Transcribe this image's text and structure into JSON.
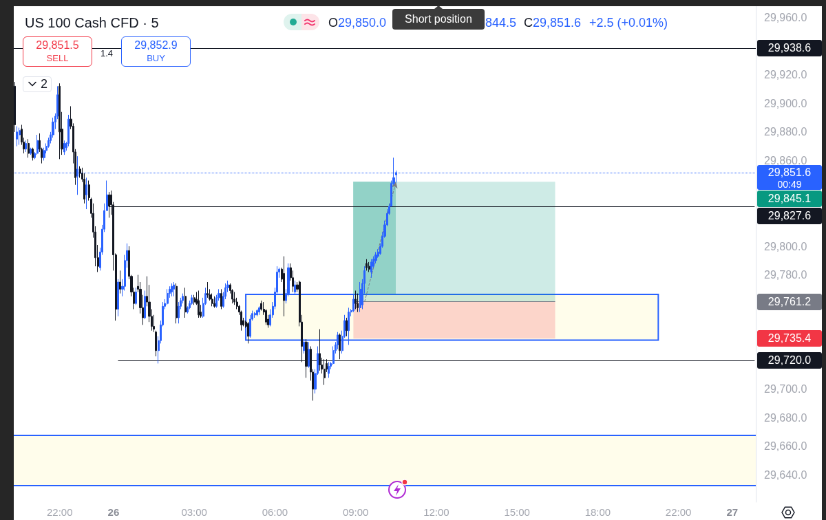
{
  "chart_data": {
    "type": "candlestick",
    "title": "US 100 Cash CFD · 5",
    "categories": [
      null,
      null,
      null,
      null,
      null,
      null,
      null,
      null,
      null,
      null,
      null,
      null,
      null,
      null,
      null,
      null,
      null,
      null,
      null,
      null,
      "22:00",
      null,
      null,
      null,
      null,
      null,
      null,
      null,
      null,
      null,
      null,
      null,
      null,
      null,
      null,
      null,
      null,
      null,
      null,
      null,
      null,
      null,
      null,
      null,
      "26",
      null,
      null,
      null,
      null,
      null,
      null,
      null,
      null,
      null,
      null,
      null,
      null,
      null,
      null,
      null,
      null,
      null,
      null,
      null,
      null,
      null,
      null,
      null,
      null,
      null,
      null,
      null,
      null,
      null,
      null,
      null,
      null,
      null,
      null,
      null,
      "03:00",
      null,
      null,
      null,
      null,
      null,
      null,
      null,
      null,
      null,
      null,
      null,
      null,
      null,
      null,
      null,
      null,
      null,
      null,
      null,
      null,
      null,
      null,
      null,
      null,
      null,
      null,
      null,
      null,
      null,
      null,
      null,
      null,
      null,
      null,
      null,
      "06:00",
      null,
      null,
      null,
      null,
      null,
      null,
      null,
      null,
      null,
      null,
      null,
      null,
      null,
      null,
      null,
      null,
      null,
      null,
      null,
      null,
      null,
      null,
      null,
      null,
      null,
      null,
      null,
      null,
      null,
      null,
      null,
      null,
      null,
      null,
      null,
      "09:00",
      null,
      null,
      null,
      null,
      null,
      null,
      null,
      null,
      null,
      null,
      null,
      null,
      null,
      null,
      null,
      null,
      null,
      null,
      null,
      null,
      null,
      null,
      null,
      null,
      null,
      null,
      null,
      null,
      null,
      null,
      null,
      null,
      null,
      null,
      null,
      "12:00",
      null,
      null,
      null,
      null,
      null,
      null,
      null,
      null,
      null,
      null,
      null,
      null,
      null,
      null,
      null,
      null,
      null,
      null,
      null,
      null,
      null,
      null,
      null,
      null,
      null,
      null,
      null,
      null,
      null,
      null,
      null,
      null,
      null,
      null,
      null,
      "15:00",
      null,
      null,
      null,
      null,
      null,
      null,
      null,
      null,
      null,
      null,
      null,
      null,
      null,
      null,
      null,
      null,
      null,
      null,
      null,
      null,
      null,
      null,
      null,
      null,
      null,
      null,
      null,
      null,
      null,
      null,
      null,
      null,
      null,
      null,
      null,
      "18:00",
      null,
      null,
      null,
      null,
      null,
      null,
      null,
      null,
      null,
      null,
      null,
      null,
      null,
      null,
      null,
      null,
      null,
      null,
      null,
      null,
      null,
      null,
      null,
      null,
      null,
      null,
      null,
      null,
      null,
      null,
      null,
      null,
      null,
      null,
      null,
      "22:00",
      null,
      null,
      null,
      null,
      null,
      null,
      null,
      null,
      null,
      null,
      null,
      null,
      null,
      null,
      null,
      null,
      null,
      null,
      null,
      null,
      null,
      null,
      null,
      "27",
      null,
      null,
      null,
      null,
      null,
      null,
      null,
      null,
      null,
      null
    ],
    "ohlc": [
      [
        29912,
        29915,
        29880,
        29885
      ],
      [
        29875,
        29884,
        29870,
        29880
      ],
      [
        29878,
        29883,
        29871,
        29881
      ],
      [
        29882,
        29885,
        29871,
        29873
      ],
      [
        29873,
        29876,
        29865,
        29868
      ],
      [
        29868,
        29874,
        29866,
        29872
      ],
      [
        29872,
        29875,
        29862,
        29865
      ],
      [
        29865,
        29869,
        29864,
        29868
      ],
      [
        29868,
        29869,
        29860,
        29862
      ],
      [
        29862,
        29866,
        29861,
        29865
      ],
      [
        29865,
        29878,
        29864,
        29874
      ],
      [
        29874,
        29879,
        29866,
        29868
      ],
      [
        29868,
        29869,
        29858,
        29862
      ],
      [
        29862,
        29869,
        29860,
        29867
      ],
      [
        29867,
        29872,
        29865,
        29870
      ],
      [
        29870,
        29876,
        29869,
        29874
      ],
      [
        29874,
        29880,
        29872,
        29878
      ],
      [
        29878,
        29890,
        29876,
        29887
      ],
      [
        29887,
        29893,
        29882,
        29891
      ],
      [
        29891,
        29912,
        29889,
        29906
      ],
      [
        29912,
        29914,
        29861,
        29880
      ],
      [
        29882,
        29894,
        29864,
        29868
      ],
      [
        29866,
        29874,
        29864,
        29872
      ],
      [
        29869,
        29873,
        29867,
        29872
      ],
      [
        29872,
        29892,
        29870,
        29889
      ],
      [
        29889,
        29898,
        29882,
        29884
      ],
      [
        29884,
        29886,
        29858,
        29866
      ],
      [
        29866,
        29868,
        29843,
        29848
      ],
      [
        29849,
        29863,
        29836,
        29854
      ],
      [
        29854,
        29856,
        29848,
        29851
      ],
      [
        29851,
        29855,
        29845,
        29847
      ],
      [
        29847,
        29851,
        29830,
        29833
      ],
      [
        29836,
        29848,
        29826,
        29843
      ],
      [
        29843,
        29846,
        29832,
        29834
      ],
      [
        29833,
        29834,
        29820,
        29823
      ],
      [
        29823,
        29830,
        29806,
        29810
      ],
      [
        29810,
        29814,
        29786,
        29792
      ],
      [
        29792,
        29801,
        29782,
        29786
      ],
      [
        29785,
        29799,
        29783,
        29796
      ],
      [
        29796,
        29815,
        29794,
        29812
      ],
      [
        29812,
        29830,
        29810,
        29825
      ],
      [
        29825,
        29846,
        29825,
        29836
      ],
      [
        29836,
        29838,
        29820,
        29828
      ],
      [
        29836,
        29839,
        29822,
        29829
      ],
      [
        29829,
        29831,
        29783,
        29794
      ],
      [
        29794,
        29795,
        29748,
        29756
      ],
      [
        29756,
        29777,
        29751,
        29775
      ],
      [
        29775,
        29783,
        29767,
        29770
      ],
      [
        29770,
        29777,
        29765,
        29772
      ],
      [
        29772,
        29794,
        29769,
        29790
      ],
      [
        29790,
        29802,
        29785,
        29797
      ],
      [
        29797,
        29800,
        29777,
        29779
      ],
      [
        29779,
        29780,
        29765,
        29768
      ],
      [
        29768,
        29771,
        29756,
        29760
      ],
      [
        29760,
        29771,
        29759,
        29768
      ],
      [
        29772,
        29780,
        29768,
        29770
      ],
      [
        29770,
        29775,
        29753,
        29757
      ],
      [
        29757,
        29766,
        29745,
        29750
      ],
      [
        29750,
        29769,
        29749,
        29765
      ],
      [
        29765,
        29779,
        29758,
        29761
      ],
      [
        29761,
        29773,
        29747,
        29751
      ],
      [
        29751,
        29756,
        29741,
        29744
      ],
      [
        29744,
        29752,
        29740,
        29742
      ],
      [
        29740,
        29741,
        29723,
        29727
      ],
      [
        29727,
        29737,
        29718,
        29734
      ],
      [
        29734,
        29748,
        29732,
        29745
      ],
      [
        29745,
        29761,
        29744,
        29758
      ],
      [
        29758,
        29763,
        29756,
        29760
      ],
      [
        29760,
        29770,
        29759,
        29767
      ],
      [
        29767,
        29772,
        29764,
        29770
      ],
      [
        29768,
        29774,
        29765,
        29772
      ],
      [
        29770,
        29775,
        29765,
        29773
      ],
      [
        29772,
        29774,
        29746,
        29750
      ],
      [
        29750,
        29761,
        29746,
        29758
      ],
      [
        29758,
        29764,
        29756,
        29762
      ],
      [
        29762,
        29767,
        29760,
        29765
      ],
      [
        29765,
        29771,
        29750,
        29754
      ],
      [
        29754,
        29758,
        29753,
        29757
      ],
      [
        29757,
        29762,
        29756,
        29760
      ],
      [
        29760,
        29766,
        29759,
        29764
      ],
      [
        29764,
        29766,
        29759,
        29761
      ],
      [
        29763,
        29768,
        29759,
        29760
      ],
      [
        29762,
        29769,
        29750,
        29752
      ],
      [
        29754,
        29759,
        29750,
        29751
      ],
      [
        29751,
        29764,
        29750,
        29760
      ],
      [
        29760,
        29771,
        29759,
        29767
      ],
      [
        29767,
        29775,
        29764,
        29766
      ],
      [
        29766,
        29770,
        29762,
        29763
      ],
      [
        29763,
        29767,
        29758,
        29760
      ],
      [
        29760,
        29765,
        29757,
        29758
      ],
      [
        29758,
        29766,
        29757,
        29764
      ],
      [
        29764,
        29770,
        29762,
        29767
      ],
      [
        29767,
        29770,
        29756,
        29758
      ],
      [
        29758,
        29768,
        29757,
        29765
      ],
      [
        29765,
        29774,
        29763,
        29771
      ],
      [
        29771,
        29776,
        29768,
        29773
      ],
      [
        29773,
        29774,
        29767,
        29769
      ],
      [
        29769,
        29770,
        29760,
        29763
      ],
      [
        29763,
        29768,
        29759,
        29761
      ],
      [
        29761,
        29764,
        29756,
        29758
      ],
      [
        29758,
        29759,
        29752,
        29754
      ],
      [
        29754,
        29755,
        29741,
        29745
      ],
      [
        29748,
        29750,
        29744,
        29745
      ],
      [
        29747,
        29748,
        29743,
        29744
      ],
      [
        29746,
        29747,
        29732,
        29737
      ],
      [
        29737,
        29752,
        29736,
        29749
      ],
      [
        29749,
        29755,
        29748,
        29753
      ],
      [
        29752,
        29754,
        29750,
        29753
      ],
      [
        29752,
        29756,
        29751,
        29755
      ],
      [
        29754,
        29758,
        29752,
        29757
      ],
      [
        29760,
        29762,
        29755,
        29756
      ],
      [
        29756,
        29761,
        29752,
        29754
      ],
      [
        29755,
        29756,
        29745,
        29747
      ],
      [
        29749,
        29752,
        29743,
        29745
      ],
      [
        29745,
        29756,
        29744,
        29752
      ],
      [
        29752,
        29761,
        29750,
        29758
      ],
      [
        29758,
        29771,
        29756,
        29768
      ],
      [
        29768,
        29786,
        29767,
        29782
      ],
      [
        29782,
        29785,
        29778,
        29784
      ],
      [
        29784,
        29785,
        29775,
        29777
      ],
      [
        29781,
        29793,
        29751,
        29762
      ],
      [
        29762,
        29770,
        29760,
        29767
      ],
      [
        29767,
        29788,
        29765,
        29785
      ],
      [
        29785,
        29788,
        29776,
        29778
      ],
      [
        29778,
        29783,
        29768,
        29772
      ],
      [
        29768,
        29776,
        29766,
        29773
      ],
      [
        29773,
        29775,
        29768,
        29770
      ],
      [
        29775,
        29776,
        29744,
        29747
      ],
      [
        29747,
        29752,
        29719,
        29730
      ],
      [
        29727,
        29735,
        29725,
        29733
      ],
      [
        29733,
        29735,
        29708,
        29716
      ],
      [
        29716,
        29733,
        29715,
        29728
      ],
      [
        29728,
        29730,
        29706,
        29712
      ],
      [
        29712,
        29714,
        29692,
        29700
      ],
      [
        29700,
        29714,
        29697,
        29711
      ],
      [
        29711,
        29730,
        29710,
        29725
      ],
      [
        29725,
        29742,
        29713,
        29717
      ],
      [
        29717,
        29722,
        29711,
        29714
      ],
      [
        29714,
        29721,
        29703,
        29708
      ],
      [
        29718,
        29721,
        29712,
        29714
      ],
      [
        29711,
        29719,
        29708,
        29716
      ],
      [
        29716,
        29719,
        29714,
        29718
      ],
      [
        29718,
        29730,
        29717,
        29727
      ],
      [
        29727,
        29733,
        29725,
        29731
      ],
      [
        29731,
        29740,
        29728,
        29738
      ],
      [
        29738,
        29739,
        29721,
        29727
      ],
      [
        29727,
        29741,
        29725,
        29737
      ],
      [
        29737,
        29752,
        29736,
        29748
      ],
      [
        29748,
        29750,
        29737,
        29741
      ],
      [
        29741,
        29757,
        29731,
        29754
      ],
      [
        29754,
        29756,
        29751,
        29755
      ],
      [
        29755,
        29766,
        29754,
        29763
      ],
      [
        29763,
        29769,
        29756,
        29760
      ],
      [
        29760,
        29767,
        29754,
        29757
      ],
      [
        29757,
        29775,
        29754,
        29770
      ],
      [
        29759,
        29777,
        29756,
        29774
      ],
      [
        29774,
        29786,
        29767,
        29783
      ],
      [
        29788,
        29791,
        29783,
        29785
      ],
      [
        29786,
        29789,
        29782,
        29784
      ],
      [
        29782,
        29791,
        29778,
        29789
      ],
      [
        29786,
        29793,
        29785,
        29791
      ],
      [
        29790,
        29796,
        29788,
        29794
      ],
      [
        29793,
        29798,
        29792,
        29796
      ],
      [
        29795,
        29802,
        29794,
        29800
      ],
      [
        29800,
        29810,
        29799,
        29807
      ],
      [
        29807,
        29818,
        29806,
        29815
      ],
      [
        29815,
        29826,
        29814,
        29823
      ],
      [
        29823,
        29830,
        29822,
        29828
      ],
      [
        29828,
        29846,
        29828,
        29844
      ],
      [
        29844,
        29862,
        29843,
        29848
      ],
      [
        29850.0,
        29853,
        29844.5,
        29851.6
      ],
      null,
      null,
      null,
      null,
      null,
      null,
      null,
      null,
      null,
      null,
      null,
      null,
      null,
      null,
      null,
      null,
      null,
      null,
      null,
      null,
      null,
      null,
      null,
      null,
      null,
      null,
      null,
      null,
      null,
      null,
      null,
      null,
      null,
      null,
      null,
      null,
      null,
      null,
      null,
      null,
      null,
      null,
      null,
      null,
      null,
      null,
      null,
      null,
      null,
      null,
      null,
      null,
      null,
      null,
      null,
      null,
      null,
      null,
      null,
      null,
      null,
      null,
      null,
      null,
      null,
      null,
      null,
      null,
      null,
      null,
      null,
      null,
      null,
      null,
      null,
      null,
      null,
      null,
      null,
      null,
      null,
      null,
      null,
      null,
      null,
      null,
      null,
      null,
      null,
      null,
      null,
      null,
      null,
      null,
      null,
      null,
      null,
      null,
      null,
      null,
      null,
      null,
      null,
      null,
      null,
      null,
      null,
      null,
      null,
      null,
      null,
      null,
      null,
      null,
      null,
      null,
      null,
      null,
      null,
      null,
      null,
      null,
      null,
      null,
      null,
      null,
      null,
      null,
      null,
      null,
      null,
      null,
      null,
      null,
      null,
      null,
      null,
      null,
      null,
      null,
      null,
      null,
      null,
      null,
      null,
      null,
      null,
      null,
      null,
      null,
      null,
      null,
      null,
      null,
      null,
      null,
      null,
      null,
      null,
      null
    ],
    "colors": [
      "#131722",
      "#2962ff",
      "#2962ff",
      "#131722",
      "#131722",
      "#2962ff",
      "#131722",
      "#2962ff",
      "#131722",
      "#2962ff",
      "#2962ff",
      "#131722",
      "#131722",
      "#2962ff",
      "#2962ff",
      "#2962ff",
      "#2962ff",
      "#2962ff",
      "#2962ff",
      "#2962ff",
      "#131722",
      "#131722",
      "#2962ff",
      "#2962ff",
      "#2962ff",
      "#131722",
      "#131722",
      "#131722",
      "#2962ff",
      "#131722",
      "#131722",
      "#131722",
      "#2962ff",
      "#131722",
      "#131722",
      "#131722",
      "#131722",
      "#131722",
      "#2962ff",
      "#2962ff",
      "#2962ff",
      "#2962ff",
      "#131722",
      "#131722",
      "#131722",
      "#131722",
      "#2962ff",
      "#131722",
      "#2962ff",
      "#2962ff",
      "#2962ff",
      "#131722",
      "#131722",
      "#131722",
      "#2962ff",
      "#131722",
      "#131722",
      "#131722",
      "#2962ff",
      "#131722",
      "#131722",
      "#131722",
      "#131722",
      "#131722",
      "#2962ff",
      "#2962ff",
      "#2962ff",
      "#2962ff",
      "#2962ff",
      "#2962ff",
      "#2962ff",
      "#2962ff",
      "#131722",
      "#2962ff",
      "#2962ff",
      "#2962ff",
      "#131722",
      "#2962ff",
      "#2962ff",
      "#2962ff",
      "#131722",
      "#131722",
      "#131722",
      "#131722",
      "#2962ff",
      "#2962ff",
      "#131722",
      "#131722",
      "#131722",
      "#131722",
      "#2962ff",
      "#2962ff",
      "#131722",
      "#2962ff",
      "#2962ff",
      "#2962ff",
      "#131722",
      "#131722",
      "#131722",
      "#131722",
      "#131722",
      "#131722",
      "#131722",
      "#131722",
      "#131722",
      "#2962ff",
      "#2962ff",
      "#2962ff",
      "#2962ff",
      "#2962ff",
      "#131722",
      "#131722",
      "#131722",
      "#131722",
      "#2962ff",
      "#2962ff",
      "#2962ff",
      "#2962ff",
      "#2962ff",
      "#131722",
      "#131722",
      "#2962ff",
      "#2962ff",
      "#131722",
      "#131722",
      "#2962ff",
      "#131722",
      "#131722",
      "#131722",
      "#2962ff",
      "#131722",
      "#2962ff",
      "#131722",
      "#131722",
      "#2962ff",
      "#2962ff",
      "#131722",
      "#131722",
      "#131722",
      "#131722",
      "#2962ff",
      "#2962ff",
      "#2962ff",
      "#2962ff",
      "#2962ff",
      "#131722",
      "#2962ff",
      "#2962ff",
      "#131722",
      "#2962ff",
      "#2962ff",
      "#2962ff",
      "#131722",
      "#131722",
      "#2962ff",
      "#2962ff",
      "#2962ff",
      "#131722",
      "#131722",
      "#2962ff",
      "#2962ff",
      "#2962ff",
      "#2962ff",
      "#2962ff",
      "#2962ff",
      "#2962ff",
      "#2962ff",
      "#2962ff",
      "#2962ff",
      "#2962ff",
      "#2962ff",
      null,
      null,
      null,
      null,
      null,
      null,
      null,
      null,
      null,
      null,
      null,
      null,
      null,
      null,
      null,
      null,
      null,
      null,
      null,
      null,
      null,
      null,
      null,
      null,
      null,
      null,
      null,
      null,
      null,
      null,
      null,
      null,
      null,
      null,
      null,
      null,
      null,
      null,
      null,
      null,
      null,
      null,
      null,
      null,
      null,
      null,
      null,
      null,
      null,
      null,
      null,
      null,
      null,
      null,
      null,
      null,
      null,
      null,
      null,
      null,
      null,
      null,
      null,
      null,
      null,
      null,
      null,
      null,
      null,
      null,
      null,
      null,
      null,
      null,
      null,
      null,
      null,
      null,
      null,
      null,
      null,
      null,
      null,
      null,
      null,
      null,
      null,
      null,
      null,
      null,
      null,
      null,
      null,
      null,
      null,
      null,
      null,
      null,
      null,
      null,
      null,
      null,
      null,
      null,
      null,
      null,
      null,
      null,
      null,
      null,
      null,
      null,
      null,
      null,
      null,
      null,
      null,
      null,
      null,
      null,
      null,
      null,
      null,
      null,
      null,
      null,
      null,
      null,
      null,
      null,
      null,
      null,
      null,
      null,
      null,
      null,
      null,
      null,
      null,
      null,
      null,
      null,
      null,
      null,
      null,
      null,
      null,
      null,
      null,
      null,
      null,
      null,
      null,
      null,
      null,
      null,
      null,
      null,
      null,
      null
    ],
    "ylim": [
      29621,
      29968
    ],
    "yticks": [
      {
        "value": 29640,
        "label": "29,640.0"
      },
      {
        "value": 29660,
        "label": "29,660.0"
      },
      {
        "value": 29680,
        "label": "29,680.0"
      },
      {
        "value": 29700,
        "label": "29,700.0"
      },
      {
        "value": 29780,
        "label": "29,780.0"
      },
      {
        "value": 29800,
        "label": "29,800.0"
      },
      {
        "value": 29860,
        "label": "29,860.0"
      },
      {
        "value": 29880,
        "label": "29,880.0"
      },
      {
        "value": 29900,
        "label": "29,900.0"
      },
      {
        "value": 29920,
        "label": "29,920.0"
      },
      {
        "value": 29960,
        "label": "29,960.0"
      }
    ],
    "ref_lines": [
      {
        "axis": "y",
        "value": 29938.6,
        "label": "29,938.6",
        "color": "#131722"
      },
      {
        "axis": "y",
        "value": 29851.6,
        "label": "29,851.6",
        "color": "#2962ff",
        "line_style": "dotted"
      },
      {
        "axis": "y",
        "value": 29827.6,
        "label": "29,827.6",
        "color": "#131722"
      },
      {
        "axis": "y",
        "value": 29761.2,
        "color": "#787b86"
      },
      {
        "axis": "y",
        "value": 29720.0,
        "label": "29,720.0",
        "color": "#131722"
      },
      {
        "axis": "y",
        "value": 29667.9,
        "color": "#2962ff"
      },
      {
        "axis": "y",
        "value": 29632.8,
        "color": "#2962ff"
      }
    ],
    "bands": [
      {
        "axis": "y",
        "from": 29761.2,
        "to": 29845.1,
        "color": "#089981"
      },
      {
        "axis": "y",
        "from": 29735.4,
        "to": 29761.2,
        "color": "#f23645"
      },
      {
        "axis": "y",
        "from": 29734.3,
        "to": 29766.3,
        "color": "#fffdeb"
      },
      {
        "axis": "y",
        "from": 29632.8,
        "to": 29667.9,
        "color": "#fffdeb"
      }
    ],
    "annotations": [
      "O29,850.0",
      "Short position",
      "844.5",
      "C29,851.6",
      "+2.5 (+0.01%)",
      "29,851.5",
      "SELL",
      "1.4",
      "29,852.9",
      "BUY",
      "2",
      "00:49",
      "29,845.1",
      "29,735.4",
      "29,761.2"
    ]
  }
}
